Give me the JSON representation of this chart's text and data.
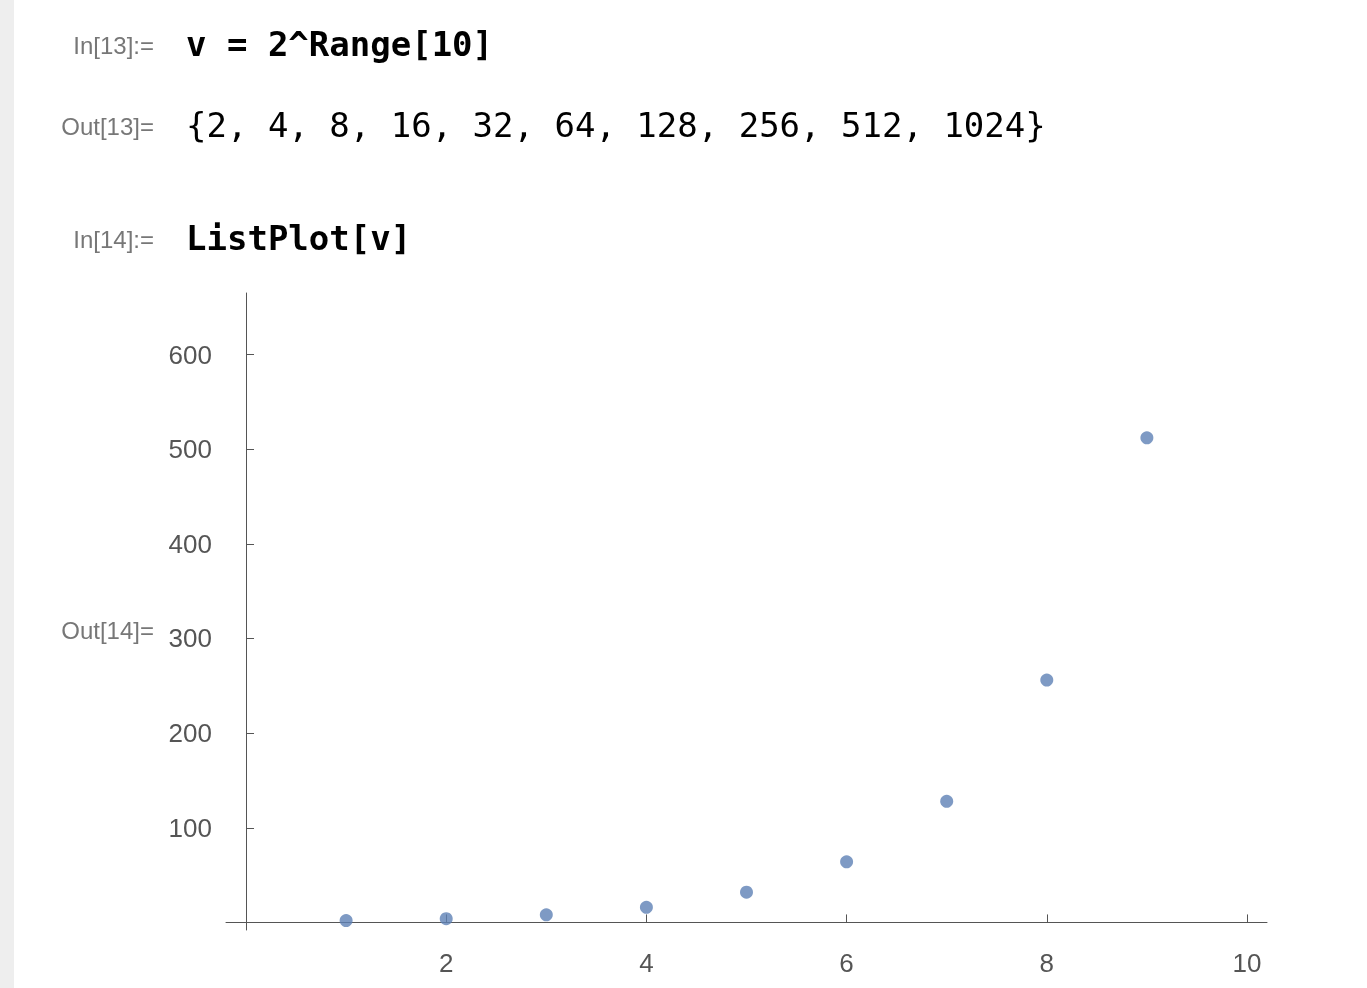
{
  "chart_data": {
    "type": "scatter",
    "annotations": [
      "In[13]:=",
      "v = 2^Range[10]",
      "Out[13]=",
      "{2, 4, 8, 16, 32, 64, 128, 256, 512, 1024}",
      "In[14]:=",
      "ListPlot[v]",
      "Out[14]="
    ],
    "x": [
      1,
      2,
      3,
      4,
      5,
      6,
      7,
      8,
      9
    ],
    "series": [
      {
        "color": "#5e81b5",
        "values": [
          2,
          4,
          8,
          16,
          32,
          64,
          128,
          256,
          512
        ]
      }
    ],
    "xlim": [
      -0.2,
      10.2
    ],
    "xticks": [
      2,
      4,
      6,
      8,
      10
    ],
    "ylim": [
      -8,
      665
    ],
    "yticks": [
      100,
      200,
      300,
      400,
      500,
      600
    ],
    "grid": false,
    "marker": "circle"
  }
}
